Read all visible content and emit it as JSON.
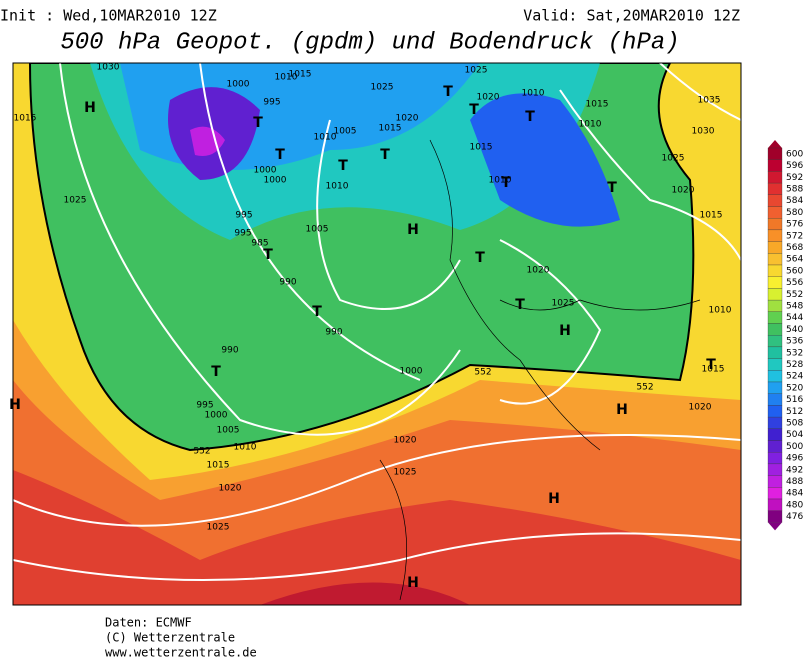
{
  "header": {
    "init": "Init : Wed,10MAR2010 12Z",
    "valid": "Valid: Sat,20MAR2010 12Z",
    "title": "500 hPa Geopot. (gpdm) und Bodendruck (hPa)"
  },
  "colorbar": {
    "values": [
      600,
      596,
      592,
      588,
      584,
      580,
      576,
      572,
      568,
      564,
      560,
      556,
      552,
      548,
      544,
      540,
      536,
      532,
      528,
      524,
      520,
      516,
      512,
      508,
      504,
      500,
      496,
      492,
      488,
      484,
      480,
      476
    ],
    "colors": [
      "#a0002a",
      "#bc0030",
      "#d01830",
      "#e03030",
      "#e84830",
      "#f06030",
      "#f07828",
      "#f89028",
      "#f8a828",
      "#f8c030",
      "#f8d830",
      "#f8f030",
      "#d8f030",
      "#a0e040",
      "#60d050",
      "#40c060",
      "#30c080",
      "#20c0a0",
      "#20c8c0",
      "#20c0e0",
      "#20a0f0",
      "#2080f0",
      "#2060f0",
      "#3040e0",
      "#4020d0",
      "#6020d0",
      "#8020e0",
      "#a020e0",
      "#c020e0",
      "#e020e0",
      "#c010c0",
      "#800080"
    ]
  },
  "map": {
    "labels": [
      "H",
      "1030",
      "1015",
      "1025",
      "1000",
      "995",
      "T",
      "1015",
      "1010",
      "T",
      "1010",
      "1000",
      "1000",
      "1005",
      "T",
      "1010",
      "T",
      "1015",
      "1020",
      "T",
      "1025",
      "1025",
      "T",
      "1020",
      "1010",
      "T",
      "1015",
      "1015",
      "1010",
      "1010",
      "T",
      "T",
      "1035",
      "1030",
      "1025",
      "1020",
      "1015",
      "995",
      "995",
      "985",
      "T",
      "1005",
      "H",
      "990",
      "T",
      "990",
      "T",
      "1020",
      "T",
      "1025",
      "H",
      "1010",
      "T",
      "1015",
      "990",
      "T",
      "1000",
      "995",
      "1000",
      "1005",
      "1010",
      "1015",
      "1020",
      "1025",
      "1020",
      "1025",
      "H",
      "H",
      "H",
      "H",
      "1020",
      "552",
      "552",
      "552",
      "H"
    ]
  },
  "footer": {
    "lines": [
      "Daten: ECMWF",
      "(C) Wetterzentrale",
      "www.wetterzentrale.de"
    ]
  }
}
